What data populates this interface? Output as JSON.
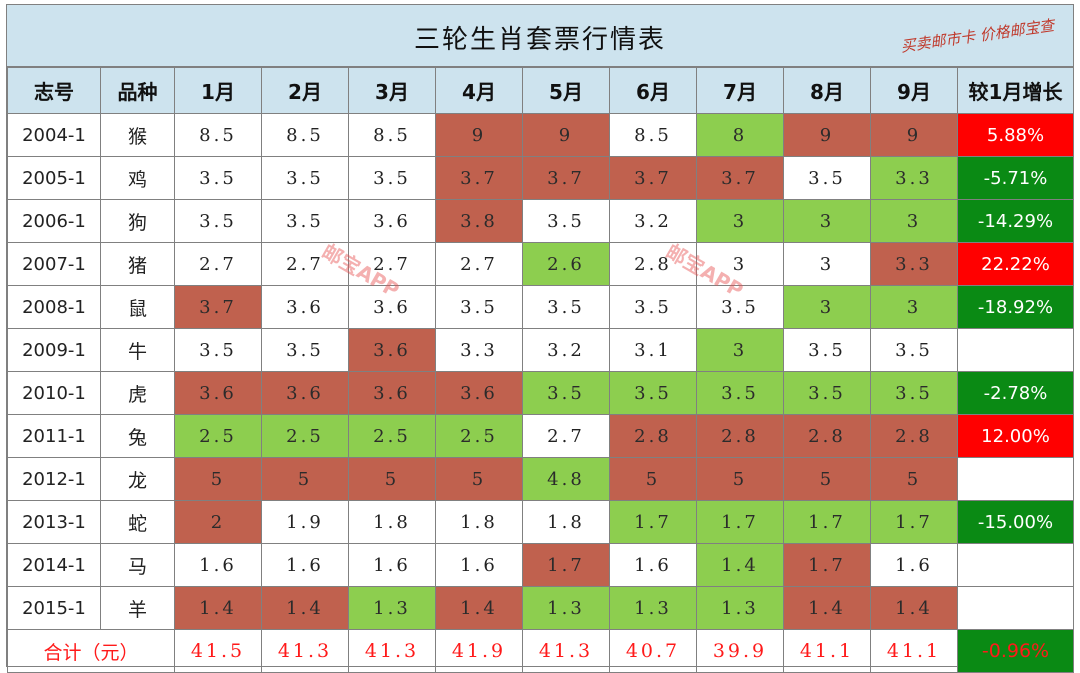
{
  "title": "三轮生肖套票行情表",
  "watermark_top": "买卖邮市卡 价格邮宝查",
  "watermark_mid": "邮宝APP",
  "headers": [
    "志号",
    "品种",
    "1月",
    "2月",
    "3月",
    "4月",
    "5月",
    "6月",
    "7月",
    "8月",
    "9月",
    "较1月增长"
  ],
  "rows": [
    {
      "id": "2004-1",
      "kind": "猴",
      "values": [
        "8.5",
        "8.5",
        "8.5",
        "9",
        "9",
        "8.5",
        "8",
        "9",
        "9"
      ],
      "colors": [
        "w",
        "w",
        "w",
        "r",
        "r",
        "w",
        "g",
        "r",
        "r"
      ],
      "growth": "5.88%",
      "growth_color": "red"
    },
    {
      "id": "2005-1",
      "kind": "鸡",
      "values": [
        "3.5",
        "3.5",
        "3.5",
        "3.7",
        "3.7",
        "3.7",
        "3.7",
        "3.5",
        "3.3"
      ],
      "colors": [
        "w",
        "w",
        "w",
        "r",
        "r",
        "r",
        "r",
        "w",
        "g"
      ],
      "growth": "-5.71%",
      "growth_color": "green"
    },
    {
      "id": "2006-1",
      "kind": "狗",
      "values": [
        "3.5",
        "3.5",
        "3.6",
        "3.8",
        "3.5",
        "3.2",
        "3",
        "3",
        "3"
      ],
      "colors": [
        "w",
        "w",
        "w",
        "r",
        "w",
        "w",
        "g",
        "g",
        "g"
      ],
      "growth": "-14.29%",
      "growth_color": "green"
    },
    {
      "id": "2007-1",
      "kind": "猪",
      "values": [
        "2.7",
        "2.7",
        "2.7",
        "2.7",
        "2.6",
        "2.8",
        "3",
        "3",
        "3.3"
      ],
      "colors": [
        "w",
        "w",
        "w",
        "w",
        "g",
        "w",
        "w",
        "w",
        "r"
      ],
      "growth": "22.22%",
      "growth_color": "red"
    },
    {
      "id": "2008-1",
      "kind": "鼠",
      "values": [
        "3.7",
        "3.6",
        "3.6",
        "3.5",
        "3.5",
        "3.5",
        "3.5",
        "3",
        "3"
      ],
      "colors": [
        "r",
        "w",
        "w",
        "w",
        "w",
        "w",
        "w",
        "g",
        "g"
      ],
      "growth": "-18.92%",
      "growth_color": "green"
    },
    {
      "id": "2009-1",
      "kind": "牛",
      "values": [
        "3.5",
        "3.5",
        "3.6",
        "3.3",
        "3.2",
        "3.1",
        "3",
        "3.5",
        "3.5"
      ],
      "colors": [
        "w",
        "w",
        "r",
        "w",
        "w",
        "w",
        "g",
        "w",
        "w"
      ],
      "growth": "",
      "growth_color": "empty"
    },
    {
      "id": "2010-1",
      "kind": "虎",
      "values": [
        "3.6",
        "3.6",
        "3.6",
        "3.6",
        "3.5",
        "3.5",
        "3.5",
        "3.5",
        "3.5"
      ],
      "colors": [
        "r",
        "r",
        "r",
        "r",
        "g",
        "g",
        "g",
        "g",
        "g"
      ],
      "growth": "-2.78%",
      "growth_color": "green"
    },
    {
      "id": "2011-1",
      "kind": "兔",
      "values": [
        "2.5",
        "2.5",
        "2.5",
        "2.5",
        "2.7",
        "2.8",
        "2.8",
        "2.8",
        "2.8"
      ],
      "colors": [
        "g",
        "g",
        "g",
        "g",
        "w",
        "r",
        "r",
        "r",
        "r"
      ],
      "growth": "12.00%",
      "growth_color": "red"
    },
    {
      "id": "2012-1",
      "kind": "龙",
      "values": [
        "5",
        "5",
        "5",
        "5",
        "4.8",
        "5",
        "5",
        "5",
        "5"
      ],
      "colors": [
        "r",
        "r",
        "r",
        "r",
        "g",
        "r",
        "r",
        "r",
        "r"
      ],
      "growth": "",
      "growth_color": "empty"
    },
    {
      "id": "2013-1",
      "kind": "蛇",
      "values": [
        "2",
        "1.9",
        "1.8",
        "1.8",
        "1.8",
        "1.7",
        "1.7",
        "1.7",
        "1.7"
      ],
      "colors": [
        "r",
        "w",
        "w",
        "w",
        "w",
        "g",
        "g",
        "g",
        "g"
      ],
      "growth": "-15.00%",
      "growth_color": "green"
    },
    {
      "id": "2014-1",
      "kind": "马",
      "values": [
        "1.6",
        "1.6",
        "1.6",
        "1.6",
        "1.7",
        "1.6",
        "1.4",
        "1.7",
        "1.6"
      ],
      "colors": [
        "w",
        "w",
        "w",
        "w",
        "r",
        "w",
        "g",
        "r",
        "w"
      ],
      "growth": "",
      "growth_color": "empty"
    },
    {
      "id": "2015-1",
      "kind": "羊",
      "values": [
        "1.4",
        "1.4",
        "1.3",
        "1.4",
        "1.3",
        "1.3",
        "1.3",
        "1.4",
        "1.4"
      ],
      "colors": [
        "r",
        "r",
        "g",
        "r",
        "g",
        "g",
        "g",
        "r",
        "r"
      ],
      "growth": "",
      "growth_color": "empty"
    }
  ],
  "total": {
    "label": "合计（元）",
    "values": [
      "41.5",
      "41.3",
      "41.3",
      "41.9",
      "41.3",
      "40.7",
      "39.9",
      "41.1",
      "41.1"
    ],
    "growth": "-0.96%",
    "growth_color": "green"
  }
}
